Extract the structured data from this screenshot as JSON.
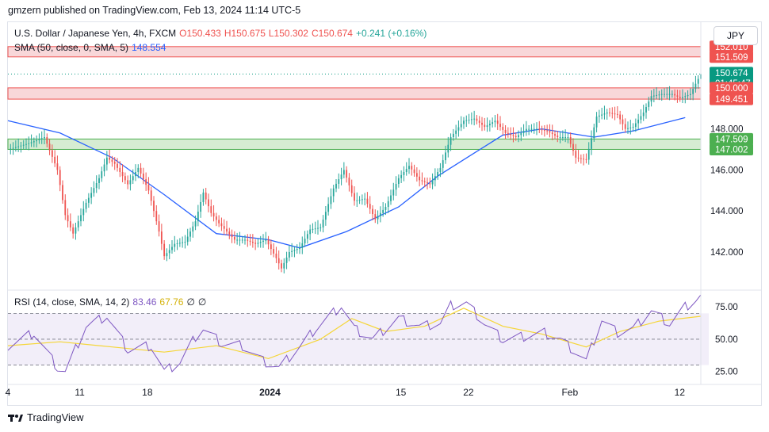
{
  "header": {
    "publisher_line": "gmzern published on TradingView.com, Feb 13, 2024 11:14 UTC-5"
  },
  "currency_button": "JPY",
  "legend": {
    "symbol": "U.S. Dollar / Japanese Yen, 4h, FXCM",
    "open": "O150.433",
    "high": "H150.675",
    "low": "L150.302",
    "close": "C150.674",
    "change": "+0.241 (+0.16%)",
    "sma_label": "SMA (50, close, 0, SMA, 5)",
    "sma_value": "148.554",
    "rsi_label": "RSI (14, close, SMA, 14, 2)",
    "rsi_value": "83.46",
    "rsi_sma_value": "67.76",
    "rsi_extra1": "∅",
    "rsi_extra2": "∅"
  },
  "footer": {
    "brand": "TradingView"
  },
  "colors": {
    "up": "#26a69a",
    "down": "#ef5350",
    "sma": "#2962ff",
    "rsi": "#7e57c2",
    "rsi_sma": "#f5d638",
    "zone_red": "#f8d7d9",
    "zone_green": "#d6ecd2"
  },
  "chart_data": {
    "type": "candlestick",
    "price_axis": {
      "ticks": [
        142,
        144,
        146,
        148,
        150
      ],
      "ylim": [
        140.3,
        153.2
      ]
    },
    "price_labels": [
      {
        "text": "152.010",
        "value": 152.01,
        "color": "#ef5350"
      },
      {
        "text": "151.509",
        "value": 151.509,
        "color": "#ef5350"
      },
      {
        "text": "150.674",
        "value": 150.674,
        "color": "#089981",
        "sub": "01:45:47"
      },
      {
        "text": "150.000",
        "value": 150.0,
        "color": "#ef5350"
      },
      {
        "text": "149.451",
        "value": 149.451,
        "color": "#ef5350"
      },
      {
        "text": "147.509",
        "value": 147.509,
        "color": "#4caf50"
      },
      {
        "text": "147.002",
        "value": 147.002,
        "color": "#4caf50"
      }
    ],
    "zones": [
      {
        "type": "resistance",
        "from": 151.509,
        "to": 152.01
      },
      {
        "type": "resistance",
        "from": 149.451,
        "to": 150.0
      },
      {
        "type": "support",
        "from": 147.002,
        "to": 147.509
      }
    ],
    "current_price": 150.674,
    "time_axis": [
      "4",
      "11",
      "18",
      "2024",
      "15",
      "22",
      "Feb",
      "12"
    ],
    "close_path": [
      [
        0,
        147.0
      ],
      [
        8,
        147.3
      ],
      [
        14,
        147.6
      ],
      [
        19,
        146.0
      ],
      [
        22,
        143.8
      ],
      [
        25,
        142.9
      ],
      [
        30,
        144.4
      ],
      [
        35,
        145.6
      ],
      [
        38,
        146.6
      ],
      [
        41,
        146.3
      ],
      [
        46,
        145.3
      ],
      [
        50,
        146.1
      ],
      [
        54,
        145.0
      ],
      [
        58,
        143.0
      ],
      [
        60,
        141.8
      ],
      [
        64,
        142.4
      ],
      [
        68,
        142.5
      ],
      [
        72,
        143.5
      ],
      [
        75,
        144.9
      ],
      [
        78,
        143.9
      ],
      [
        81,
        143.4
      ],
      [
        84,
        143.0
      ],
      [
        87,
        142.6
      ],
      [
        91,
        142.6
      ],
      [
        95,
        142.4
      ],
      [
        99,
        142.6
      ],
      [
        103,
        141.7
      ],
      [
        105,
        141.2
      ],
      [
        108,
        142.0
      ],
      [
        112,
        142.2
      ],
      [
        116,
        143.1
      ],
      [
        120,
        143.2
      ],
      [
        125,
        145.1
      ],
      [
        129,
        146.0
      ],
      [
        133,
        144.5
      ],
      [
        137,
        144.6
      ],
      [
        141,
        143.6
      ],
      [
        145,
        144.2
      ],
      [
        150,
        145.6
      ],
      [
        154,
        146.2
      ],
      [
        158,
        145.5
      ],
      [
        162,
        145.3
      ],
      [
        166,
        146.1
      ],
      [
        170,
        147.6
      ],
      [
        175,
        148.4
      ],
      [
        179,
        148.5
      ],
      [
        183,
        148.1
      ],
      [
        187,
        148.4
      ],
      [
        191,
        147.8
      ],
      [
        195,
        147.6
      ],
      [
        199,
        148.0
      ],
      [
        203,
        148.0
      ],
      [
        207,
        147.9
      ],
      [
        211,
        147.6
      ],
      [
        215,
        147.6
      ],
      [
        218,
        146.6
      ],
      [
        222,
        146.5
      ],
      [
        226,
        148.6
      ],
      [
        230,
        148.8
      ],
      [
        234,
        148.7
      ],
      [
        237,
        148.0
      ],
      [
        240,
        148.1
      ],
      [
        244,
        148.8
      ],
      [
        247,
        149.6
      ],
      [
        251,
        149.7
      ],
      [
        255,
        149.7
      ],
      [
        258,
        149.5
      ],
      [
        262,
        149.7
      ],
      [
        264,
        150.2
      ],
      [
        266,
        150.67
      ]
    ],
    "sma50_path": [
      [
        0,
        148.4
      ],
      [
        20,
        147.8
      ],
      [
        40,
        146.6
      ],
      [
        60,
        144.8
      ],
      [
        80,
        142.9
      ],
      [
        100,
        142.6
      ],
      [
        112,
        142.2
      ],
      [
        130,
        143.0
      ],
      [
        150,
        144.2
      ],
      [
        165,
        145.7
      ],
      [
        180,
        146.9
      ],
      [
        190,
        147.7
      ],
      [
        205,
        148.0
      ],
      [
        225,
        147.6
      ],
      [
        240,
        147.9
      ],
      [
        260,
        148.55
      ]
    ],
    "rsi_axis": {
      "ticks": [
        25.0,
        50.0,
        75.0
      ],
      "ylim": [
        15,
        88
      ],
      "tick_labels": [
        "25.00",
        "50.00",
        "75.00"
      ]
    },
    "rsi_path": [
      [
        0,
        45
      ],
      [
        10,
        55
      ],
      [
        19,
        28
      ],
      [
        22,
        25
      ],
      [
        30,
        60
      ],
      [
        38,
        68
      ],
      [
        46,
        42
      ],
      [
        55,
        45
      ],
      [
        60,
        25
      ],
      [
        66,
        32
      ],
      [
        72,
        52
      ],
      [
        75,
        58
      ],
      [
        82,
        47
      ],
      [
        90,
        45
      ],
      [
        98,
        33
      ],
      [
        104,
        28
      ],
      [
        112,
        44
      ],
      [
        118,
        58
      ],
      [
        128,
        76
      ],
      [
        133,
        58
      ],
      [
        140,
        50
      ],
      [
        150,
        66
      ],
      [
        158,
        60
      ],
      [
        166,
        62
      ],
      [
        170,
        76
      ],
      [
        176,
        78
      ],
      [
        183,
        62
      ],
      [
        190,
        50
      ],
      [
        198,
        52
      ],
      [
        206,
        55
      ],
      [
        212,
        50
      ],
      [
        218,
        40
      ],
      [
        222,
        33
      ],
      [
        228,
        65
      ],
      [
        234,
        55
      ],
      [
        240,
        58
      ],
      [
        247,
        72
      ],
      [
        254,
        62
      ],
      [
        260,
        75
      ],
      [
        264,
        80
      ],
      [
        266,
        83.46
      ]
    ],
    "rsi_sma_path": [
      [
        0,
        45
      ],
      [
        20,
        48
      ],
      [
        40,
        44
      ],
      [
        60,
        40
      ],
      [
        80,
        45
      ],
      [
        100,
        35
      ],
      [
        120,
        50
      ],
      [
        132,
        66
      ],
      [
        145,
        56
      ],
      [
        160,
        60
      ],
      [
        175,
        74
      ],
      [
        190,
        60
      ],
      [
        205,
        54
      ],
      [
        222,
        44
      ],
      [
        235,
        56
      ],
      [
        250,
        64
      ],
      [
        266,
        67.76
      ]
    ]
  }
}
